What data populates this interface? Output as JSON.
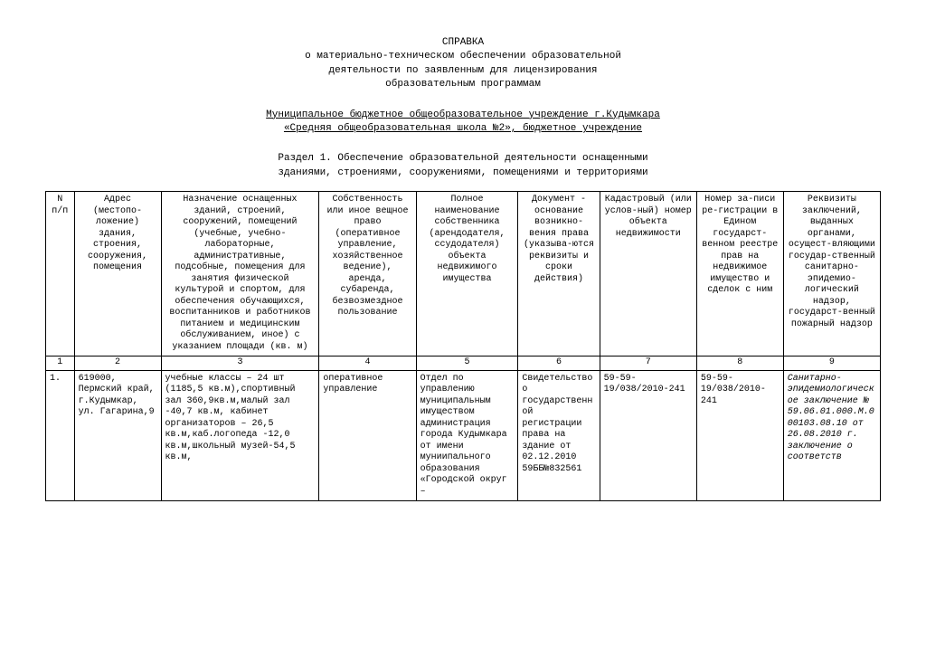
{
  "header": {
    "title": "СПРАВКА",
    "line1": "о материально-техническом обеспечении образовательной",
    "line2": "деятельности по заявленным для лицензирования",
    "line3": "образовательным программам",
    "org1": "Муниципальное бюджетное общеобразовательное учреждение г.Кудымкара",
    "org2": "«Средняя общеобразовательная школа №2»,  бюджетное учреждение"
  },
  "section": {
    "line1": "Раздел   1.   Обеспечение   образовательной   деятельности  оснащенными",
    "line2": "зданиями, строениями, сооружениями, помещениями и территориями"
  },
  "table": {
    "columns": [
      "N п/п",
      "Адрес (местопо-ложение) здания, строения, сооружения, помещения",
      "Назначение оснащенных зданий, строений, сооружений, помещений (учебные, учебно-лабораторные, административные, подсобные, помещения для занятия физической культурой и спортом, для обеспечения обучающихся, воспитанников и работников питанием и медицинским обслуживанием, иное) с указанием площади (кв. м)",
      "Собственность или иное вещное право (оперативное управление, хозяйственное ведение), аренда, субаренда, безвозмездное пользование",
      "Полное наименование собственника (арендодателя, ссудодателя) объекта недвижимого имущества",
      "Документ - основание возникно-вения права (указыва-ются реквизиты и сроки действия)",
      "Кадастровый (или услов-ный) номер объекта недвижимости",
      "Номер за-писи ре-гистрации в Едином государст-венном реестре прав на недвижимое имущество и сделок с ним",
      "Реквизиты заключений, выданных органами, осущест-вляющими государ-ственный санитарно-эпидемио-логический надзор, государст-венный пожарный надзор"
    ],
    "numrow": [
      "1",
      "2",
      "3",
      "4",
      "5",
      "6",
      "7",
      "8",
      "9"
    ],
    "row1": {
      "c0": "1.",
      "c1": "619000, Пермский край, г.Кудымкар, ул. Гагарина,9",
      "c2": "учебные классы – 24 шт (1185,5 кв.м),спортивный зал 360,9кв.м,малый зал -40,7 кв.м, кабинет организаторов – 26,5 кв.м,каб.логопеда -12,0 кв.м,школьный музей-54,5 кв.м,",
      "c3": "оперативное управление",
      "c4": "Отдел по управлению муниципальным имуществом администрация города Кудымкара от имени муниипального образования «Городской округ –",
      "c5": "Свидетельство о государственной регистрации права на здание от 02.12.2010 59ББ№832561",
      "c6": "59-59-19/038/2010-241",
      "c7": "59-59-19/038/2010-241",
      "c8": "Санитарно-эпидемиологическое заключение № 59.06.01.000.М.000103.08.10 от 26.08.2010 г. заключение о соответств"
    }
  }
}
